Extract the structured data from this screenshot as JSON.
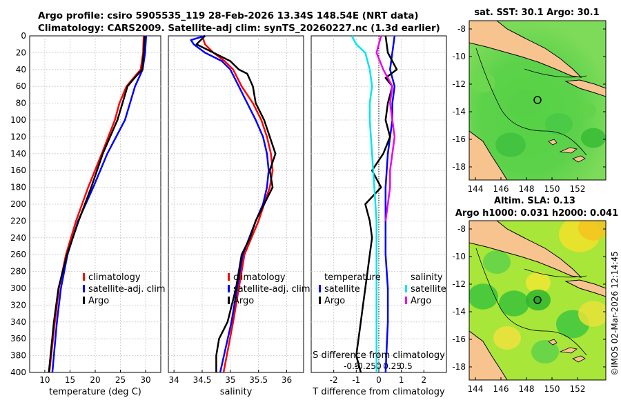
{
  "header": {
    "title_line1": "Argo profile: csiro 5905535_119 28-Feb-2026 13.34S 148.54E (NRT data)",
    "title_line2": "Climatology: CARS2009. Satellite-adj clim: synTS_20260227.nc (1.3d earlier)"
  },
  "colors": {
    "climatology": "#ff0000",
    "satellite": "#0000ff",
    "argo": "#000000",
    "salinity_satellite": "#00e5ee",
    "salinity_diff": "#ee00ee",
    "land": "#f7c48f",
    "sea_green": "#3cc43c",
    "sea_yellow": "#f2e02a"
  },
  "depth_ticks": [
    "0",
    "20",
    "40",
    "60",
    "80",
    "100",
    "120",
    "140",
    "160",
    "180",
    "200",
    "220",
    "240",
    "260",
    "280",
    "300",
    "320",
    "340",
    "360",
    "380",
    "400"
  ],
  "chart_data": [
    {
      "type": "line",
      "xlabel": "temperature (deg C)",
      "ylabel": "depth",
      "xlim": [
        7,
        33
      ],
      "ylim": [
        400,
        0
      ],
      "xtick_values": [
        10,
        15,
        20,
        25,
        30
      ],
      "xtick_labels": [
        "10",
        "15",
        "20",
        "25",
        "30"
      ],
      "legend": [
        "climatology",
        "satellite-adj. clim",
        "Argo"
      ],
      "series": [
        {
          "name": "climatology",
          "color": "#ff0000",
          "depth": [
            0,
            20,
            40,
            60,
            80,
            100,
            140,
            180,
            220,
            260,
            300,
            340,
            400
          ],
          "values": [
            29.6,
            29.5,
            29.0,
            26.2,
            24.8,
            23.9,
            21.3,
            18.6,
            16.2,
            14.2,
            12.8,
            12.0,
            10.9
          ]
        },
        {
          "name": "satellite-adj. clim",
          "color": "#0000ff",
          "depth": [
            0,
            20,
            40,
            60,
            80,
            100,
            140,
            180,
            220,
            260,
            300,
            340,
            400
          ],
          "values": [
            30.1,
            29.9,
            29.4,
            27.9,
            26.9,
            25.9,
            22.4,
            19.6,
            16.6,
            14.5,
            13.2,
            12.4,
            11.5
          ]
        },
        {
          "name": "Argo",
          "color": "#000000",
          "depth": [
            0,
            20,
            40,
            50,
            60,
            80,
            100,
            140,
            180,
            220,
            260,
            300,
            340,
            400
          ],
          "values": [
            29.8,
            29.6,
            29.3,
            27.8,
            26.4,
            25.4,
            24.4,
            21.5,
            19.2,
            16.7,
            14.4,
            12.7,
            11.8,
            10.8
          ]
        }
      ]
    },
    {
      "type": "line",
      "xlabel": "salinity",
      "ylabel": "depth",
      "xlim": [
        33.9,
        36.3
      ],
      "ylim": [
        400,
        0
      ],
      "xtick_values": [
        34,
        34.5,
        35,
        35.5,
        36
      ],
      "xtick_labels": [
        "34",
        "34.5",
        "35",
        "35.5",
        "36"
      ],
      "legend": [
        "climatology",
        "satellite-adj. clim",
        "Argo"
      ],
      "series": [
        {
          "name": "climatology",
          "color": "#ff0000",
          "depth": [
            0,
            10,
            20,
            30,
            40,
            60,
            80,
            100,
            120,
            140,
            160,
            180,
            200,
            220,
            260,
            300,
            340,
            400
          ],
          "values": [
            34.5,
            34.55,
            34.7,
            34.9,
            35.05,
            35.2,
            35.4,
            35.55,
            35.65,
            35.72,
            35.75,
            35.7,
            35.6,
            35.5,
            35.25,
            35.15,
            35.05,
            34.88
          ]
        },
        {
          "name": "satellite-adj. clim",
          "color": "#0000ff",
          "depth": [
            0,
            5,
            10,
            20,
            30,
            40,
            60,
            80,
            100,
            120,
            140,
            160,
            180,
            200,
            220,
            260,
            300,
            340,
            400
          ],
          "values": [
            34.55,
            34.3,
            34.35,
            34.55,
            34.85,
            35.0,
            35.15,
            35.3,
            35.45,
            35.58,
            35.65,
            35.68,
            35.65,
            35.58,
            35.45,
            35.22,
            35.12,
            35.02,
            34.82
          ]
        },
        {
          "name": "Argo",
          "color": "#000000",
          "depth": [
            0,
            10,
            20,
            30,
            40,
            45,
            60,
            80,
            100,
            120,
            140,
            150,
            160,
            180,
            200,
            220,
            240,
            260,
            300,
            340,
            360,
            380,
            400
          ],
          "values": [
            34.55,
            34.4,
            34.7,
            35.0,
            35.15,
            35.3,
            35.4,
            35.45,
            35.6,
            35.7,
            35.8,
            35.75,
            35.7,
            35.75,
            35.6,
            35.45,
            35.35,
            35.2,
            35.1,
            34.95,
            34.8,
            34.75,
            34.75
          ]
        }
      ]
    },
    {
      "type": "line",
      "xlabel": "T difference from climatology",
      "xlabel_top": "S difference from climatology",
      "ylabel": "depth",
      "xlim": [
        -3,
        3
      ],
      "ylim": [
        400,
        0
      ],
      "xtick_values": [
        -2,
        -1,
        0,
        1,
        2
      ],
      "xtick_labels": [
        "-2",
        "-1",
        "0",
        "1",
        "2"
      ],
      "s_tick_values": [
        -0.5,
        -0.25,
        0,
        0.25,
        0.5
      ],
      "s_tick_labels": [
        "-0.5",
        "-0.25",
        "0",
        "0.25",
        "0.5"
      ],
      "legend_temperature": [
        "temperature",
        "satellite",
        "Argo"
      ],
      "legend_salinity": [
        "salinity",
        "satellite",
        "Argo"
      ],
      "series": [
        {
          "name": "T satellite",
          "color": "#0000ff",
          "depth": [
            0,
            20,
            40,
            60,
            80,
            100,
            140,
            180,
            220,
            260,
            300,
            340,
            400
          ],
          "values": [
            0.7,
            0.6,
            0.5,
            0.7,
            0.6,
            0.6,
            0.4,
            0.3,
            0.3,
            0.3,
            0.4,
            0.4,
            0.3
          ]
        },
        {
          "name": "T Argo",
          "color": "#000000",
          "depth": [
            0,
            20,
            40,
            50,
            60,
            80,
            100,
            120,
            140,
            160,
            180,
            200,
            220,
            240,
            260,
            280,
            300,
            320,
            340,
            360,
            380,
            400
          ],
          "values": [
            0.3,
            0.4,
            0.8,
            0.3,
            0.6,
            0.4,
            0.3,
            0.5,
            0.2,
            -0.3,
            0.1,
            -0.6,
            -0.4,
            -0.3,
            -0.4,
            -0.5,
            -0.6,
            -0.7,
            -0.8,
            -0.9,
            -1.0,
            -0.8
          ]
        },
        {
          "name": "S satellite",
          "color": "#00e5ee",
          "depth": [
            0,
            10,
            20,
            40,
            60,
            80,
            100,
            140,
            180,
            220,
            260,
            300,
            340,
            400
          ],
          "values": [
            -1.2,
            -1.0,
            -0.6,
            -0.4,
            -0.3,
            -0.4,
            -0.4,
            -0.3,
            -0.2,
            -0.1,
            -0.1,
            -0.1,
            -0.1,
            -0.1
          ]
        },
        {
          "name": "S Argo",
          "color": "#ee00ee",
          "depth": [
            0,
            20,
            40,
            60,
            80,
            100,
            120,
            140,
            160,
            180,
            200,
            220
          ],
          "values": [
            0.1,
            -0.1,
            0.2,
            0.6,
            0.5,
            0.6,
            0.7,
            0.6,
            0.5,
            0.5,
            0.4,
            0.3
          ]
        }
      ]
    }
  ],
  "maps": {
    "sst": {
      "title": "sat. SST: 30.1 Argo: 30.1",
      "lat_ticks": [
        "-8",
        "-10",
        "-12",
        "-14",
        "-16",
        "-18"
      ],
      "lon_ticks": [
        "144",
        "146",
        "148",
        "150",
        "152"
      ]
    },
    "sla": {
      "title1": "Altim. SLA: 0.13",
      "title2": "Argo h1000: 0.031 h2000: 0.041",
      "lat_ticks": [
        "-8",
        "-10",
        "-12",
        "-14",
        "-16",
        "-18"
      ],
      "lon_ticks": [
        "144",
        "146",
        "148",
        "150",
        "152"
      ]
    }
  },
  "footer": {
    "copyright": "©IMOS 02-Mar-2026 12:14:45"
  }
}
